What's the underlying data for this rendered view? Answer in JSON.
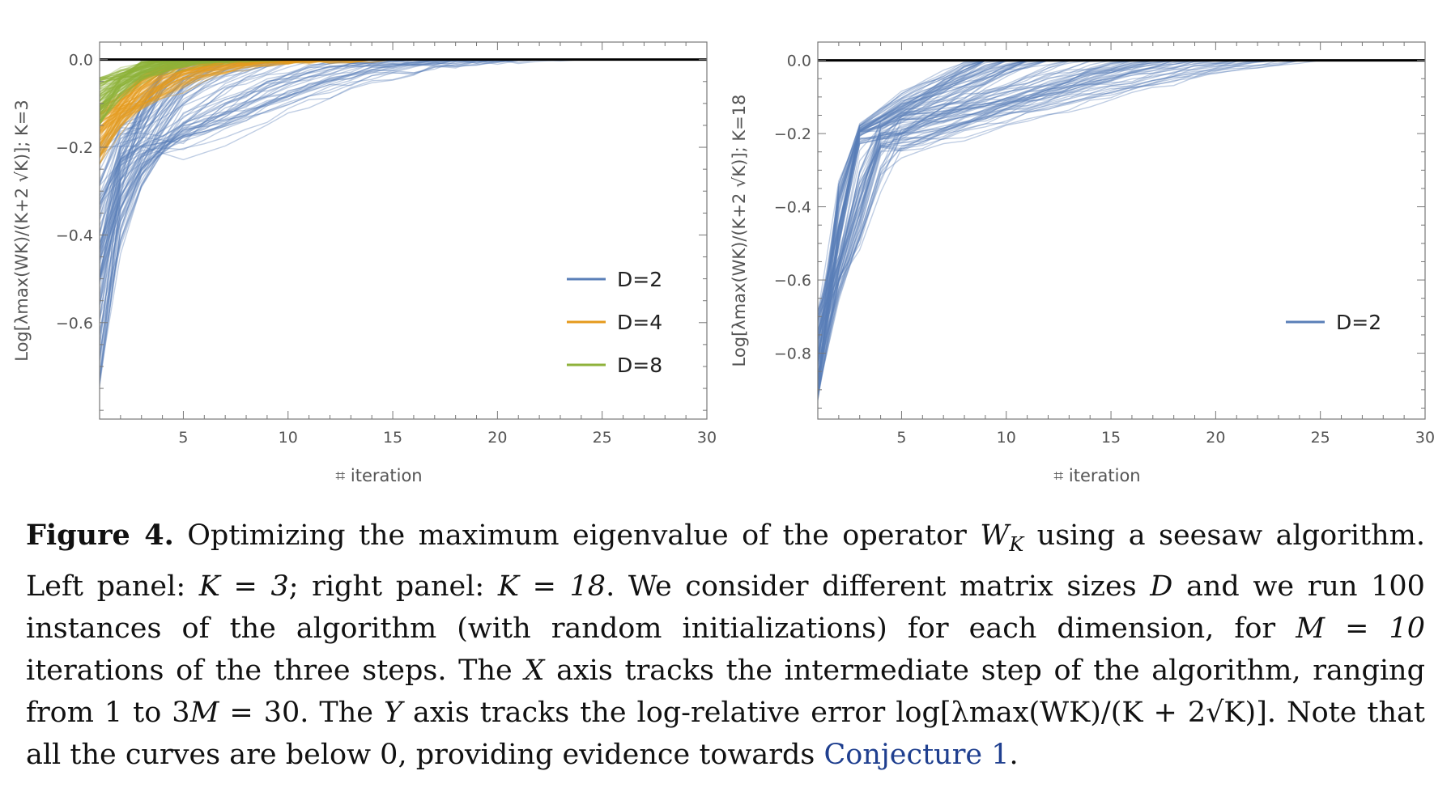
{
  "chart_data": [
    {
      "type": "line",
      "xlabel": "⌗ iteration",
      "ylabel": "Log[λmax(WK)/(K+2 √K)]; K=3",
      "xlim": [
        1,
        30
      ],
      "ylim": [
        -0.82,
        0.04
      ],
      "xticks": [
        5,
        10,
        15,
        20,
        25,
        30
      ],
      "yticks": [
        0.0,
        -0.2,
        -0.4,
        -0.6
      ],
      "ytick_labels": [
        "0.0",
        "−0.2",
        "−0.4",
        "−0.6"
      ],
      "grid": false,
      "legend_position": "lower-right",
      "reference_line": {
        "y": 0.0,
        "color": "#000000"
      },
      "runs_per_series": 100,
      "series": [
        {
          "name": "D=2",
          "color": "#5a7fb8",
          "median_curve": {
            "x": [
              1,
              2,
              3,
              4,
              5,
              6,
              8,
              10,
              12,
              14,
              16
            ],
            "y": [
              -0.33,
              -0.23,
              -0.19,
              -0.17,
              -0.155,
              -0.13,
              -0.08,
              -0.04,
              -0.015,
              -0.004,
              0.0
            ]
          },
          "start_range": [
            -0.75,
            -0.2
          ],
          "reach_zero_iteration_range": [
            4,
            24
          ]
        },
        {
          "name": "D=4",
          "color": "#e59a1c",
          "median_curve": {
            "x": [
              1,
              2,
              3,
              4,
              5,
              6,
              8,
              10,
              12,
              14
            ],
            "y": [
              -0.18,
              -0.14,
              -0.11,
              -0.08,
              -0.055,
              -0.035,
              -0.015,
              -0.004,
              -0.001,
              0.0
            ]
          },
          "start_range": [
            -0.24,
            -0.1
          ],
          "reach_zero_iteration_range": [
            6,
            15
          ]
        },
        {
          "name": "D=8",
          "color": "#8fb23b",
          "median_curve": {
            "x": [
              1,
              2,
              3,
              4,
              5,
              6,
              7
            ],
            "y": [
              -0.1,
              -0.06,
              -0.03,
              -0.014,
              -0.005,
              -0.001,
              0.0
            ]
          },
          "start_range": [
            -0.15,
            -0.04
          ],
          "reach_zero_iteration_range": [
            4,
            10
          ]
        }
      ]
    },
    {
      "type": "line",
      "xlabel": "⌗ iteration",
      "ylabel": "Log[λmax(WK)/(K+2 √K)]; K=18",
      "xlim": [
        1,
        30
      ],
      "ylim": [
        -0.98,
        0.05
      ],
      "xticks": [
        5,
        10,
        15,
        20,
        25,
        30
      ],
      "yticks": [
        0.0,
        -0.2,
        -0.4,
        -0.6,
        -0.8
      ],
      "ytick_labels": [
        "0.0",
        "−0.2",
        "−0.4",
        "−0.6",
        "−0.8"
      ],
      "grid": false,
      "legend_position": "center-right",
      "reference_line": {
        "y": 0.0,
        "color": "#000000"
      },
      "runs_per_series": 100,
      "series": [
        {
          "name": "D=2",
          "color": "#5a7fb8",
          "median_curve": {
            "x": [
              1,
              2,
              3,
              4,
              5,
              7,
              9,
              11,
              13,
              15,
              17,
              19,
              20
            ],
            "y": [
              -0.82,
              -0.6,
              -0.45,
              -0.22,
              -0.2,
              -0.18,
              -0.15,
              -0.12,
              -0.09,
              -0.06,
              -0.03,
              -0.008,
              0.0
            ]
          },
          "start_range": [
            -0.93,
            -0.68
          ],
          "reach_zero_iteration_range": [
            8,
            25
          ]
        }
      ]
    }
  ],
  "caption": {
    "label": "Figure 4.",
    "text_1": "Optimizing the maximum eigenvalue of the operator",
    "wk": "W",
    "wk_sub": "K",
    "text_2": "using a seesaw algorithm. Left panel:",
    "k3": "K = 3",
    "text_3": "; right panel:",
    "k18": "K = 18",
    "text_4": ". We consider different matrix sizes",
    "d": "D",
    "text_5": "and we run 100 instances of the algorithm (with random initializations) for each dimension, for",
    "m10": "M = 10",
    "text_6": "iterations of the three steps. The",
    "x": "X",
    "text_7": "axis tracks the intermediate step of the algorithm, ranging from 1 to 3",
    "m30": "M",
    "text_8": "= 30. The",
    "y": "Y",
    "text_9": "axis tracks the log-relative error",
    "formula": "log[λmax(WK)/(K + 2√K)]",
    "text_10": ". Note that all the curves are below 0, providing evidence towards",
    "link": "Conjecture 1",
    "text_11": "."
  }
}
